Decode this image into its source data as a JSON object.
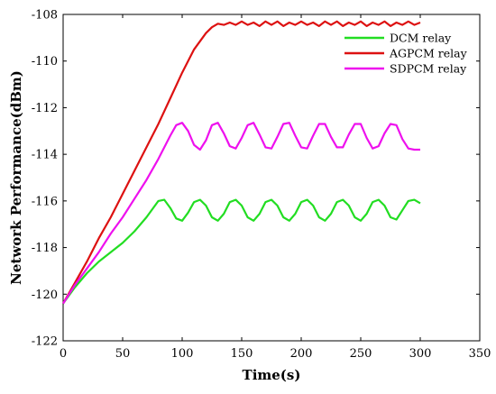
{
  "chart_data": {
    "type": "line",
    "title": "",
    "xlabel": "Time(s)",
    "ylabel": "Network Performance(dBm)",
    "xlim": [
      0,
      350
    ],
    "ylim": [
      -122,
      -108
    ],
    "xticks": [
      0,
      50,
      100,
      150,
      200,
      250,
      300,
      350
    ],
    "yticks": [
      -122,
      -120,
      -118,
      -116,
      -114,
      -112,
      -110,
      -108
    ],
    "grid": false,
    "legend_position": "top-right",
    "series": [
      {
        "name": "DCM relay",
        "color": "#22dd22",
        "x": [
          0,
          10,
          20,
          30,
          40,
          50,
          60,
          70,
          80,
          85,
          90,
          95,
          100,
          105,
          110,
          115,
          120,
          125,
          130,
          135,
          140,
          145,
          150,
          155,
          160,
          165,
          170,
          175,
          180,
          185,
          190,
          195,
          200,
          205,
          210,
          215,
          220,
          225,
          230,
          235,
          240,
          245,
          250,
          255,
          260,
          265,
          270,
          275,
          280,
          285,
          290,
          295,
          300
        ],
        "values": [
          -120.4,
          -119.7,
          -119.1,
          -118.6,
          -118.2,
          -117.8,
          -117.3,
          -116.7,
          -116.0,
          -115.95,
          -116.3,
          -116.75,
          -116.85,
          -116.5,
          -116.05,
          -115.95,
          -116.2,
          -116.7,
          -116.85,
          -116.55,
          -116.05,
          -115.95,
          -116.2,
          -116.7,
          -116.85,
          -116.55,
          -116.05,
          -115.95,
          -116.2,
          -116.7,
          -116.85,
          -116.55,
          -116.05,
          -115.95,
          -116.2,
          -116.7,
          -116.85,
          -116.55,
          -116.05,
          -115.95,
          -116.2,
          -116.7,
          -116.85,
          -116.55,
          -116.05,
          -115.95,
          -116.2,
          -116.7,
          -116.8,
          -116.4,
          -116.0,
          -115.95,
          -116.1
        ]
      },
      {
        "name": "AGPCM relay",
        "color": "#dd1111",
        "x": [
          0,
          10,
          20,
          30,
          40,
          50,
          60,
          70,
          80,
          90,
          100,
          110,
          120,
          125,
          130,
          135,
          140,
          145,
          150,
          155,
          160,
          165,
          170,
          175,
          180,
          185,
          190,
          195,
          200,
          205,
          210,
          215,
          220,
          225,
          230,
          235,
          240,
          245,
          250,
          255,
          260,
          265,
          270,
          275,
          280,
          285,
          290,
          295,
          300
        ],
        "values": [
          -120.4,
          -119.5,
          -118.6,
          -117.6,
          -116.7,
          -115.7,
          -114.7,
          -113.7,
          -112.7,
          -111.6,
          -110.5,
          -109.5,
          -108.8,
          -108.55,
          -108.4,
          -108.45,
          -108.35,
          -108.45,
          -108.3,
          -108.45,
          -108.35,
          -108.5,
          -108.3,
          -108.45,
          -108.3,
          -108.5,
          -108.35,
          -108.45,
          -108.3,
          -108.45,
          -108.35,
          -108.5,
          -108.3,
          -108.45,
          -108.3,
          -108.5,
          -108.35,
          -108.45,
          -108.3,
          -108.5,
          -108.35,
          -108.45,
          -108.3,
          -108.5,
          -108.35,
          -108.45,
          -108.3,
          -108.45,
          -108.35
        ]
      },
      {
        "name": "SDPCM relay",
        "color": "#ee11ee",
        "x": [
          0,
          10,
          20,
          30,
          40,
          50,
          60,
          70,
          80,
          90,
          95,
          100,
          105,
          110,
          115,
          120,
          125,
          130,
          135,
          140,
          145,
          150,
          155,
          160,
          165,
          170,
          175,
          180,
          185,
          190,
          195,
          200,
          205,
          210,
          215,
          220,
          225,
          230,
          235,
          240,
          245,
          250,
          255,
          260,
          265,
          270,
          275,
          280,
          285,
          290,
          295,
          300
        ],
        "values": [
          -120.4,
          -119.6,
          -118.9,
          -118.2,
          -117.4,
          -116.7,
          -115.9,
          -115.1,
          -114.2,
          -113.2,
          -112.75,
          -112.65,
          -113.0,
          -113.6,
          -113.8,
          -113.4,
          -112.75,
          -112.65,
          -113.1,
          -113.65,
          -113.75,
          -113.3,
          -112.75,
          -112.65,
          -113.15,
          -113.7,
          -113.75,
          -113.25,
          -112.7,
          -112.65,
          -113.2,
          -113.7,
          -113.75,
          -113.2,
          -112.7,
          -112.7,
          -113.25,
          -113.7,
          -113.7,
          -113.15,
          -112.7,
          -112.7,
          -113.3,
          -113.75,
          -113.65,
          -113.1,
          -112.7,
          -112.75,
          -113.35,
          -113.75,
          -113.8,
          -113.8
        ]
      }
    ]
  }
}
